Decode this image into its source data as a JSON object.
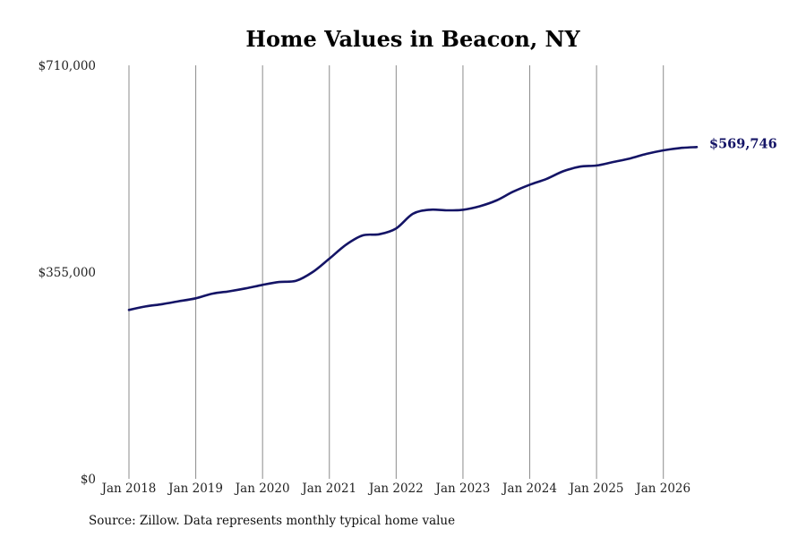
{
  "chart_data": {
    "type": "line",
    "title": "Home Values in Beacon, NY",
    "source": "Source: Zillow. Data represents monthly typical home value",
    "y_ticks": [
      "$0",
      "$355,000",
      "$710,000"
    ],
    "ylim": [
      0,
      710000
    ],
    "x_ticks": [
      "Jan 2018",
      "Jan 2019",
      "Jan 2020",
      "Jan 2021",
      "Jan 2022",
      "Jan 2023",
      "Jan 2024",
      "Jan 2025",
      "Jan 2026"
    ],
    "x_tick_years": [
      2018,
      2019,
      2020,
      2021,
      2022,
      2023,
      2024,
      2025,
      2026
    ],
    "xlim": [
      2018,
      2026.5
    ],
    "grid": "vertical",
    "series": [
      {
        "color": "#141466",
        "points": [
          [
            2018.0,
            290000
          ],
          [
            2018.25,
            296000
          ],
          [
            2018.5,
            300000
          ],
          [
            2018.75,
            305000
          ],
          [
            2019.0,
            310000
          ],
          [
            2019.25,
            318000
          ],
          [
            2019.5,
            322000
          ],
          [
            2019.75,
            327000
          ],
          [
            2020.0,
            333000
          ],
          [
            2020.25,
            338000
          ],
          [
            2020.5,
            340000
          ],
          [
            2020.75,
            355000
          ],
          [
            2021.0,
            378000
          ],
          [
            2021.25,
            402000
          ],
          [
            2021.5,
            418000
          ],
          [
            2021.75,
            420000
          ],
          [
            2022.0,
            430000
          ],
          [
            2022.25,
            455000
          ],
          [
            2022.5,
            462000
          ],
          [
            2022.75,
            461000
          ],
          [
            2023.0,
            462000
          ],
          [
            2023.25,
            468000
          ],
          [
            2023.5,
            478000
          ],
          [
            2023.75,
            493000
          ],
          [
            2024.0,
            505000
          ],
          [
            2024.25,
            515000
          ],
          [
            2024.5,
            528000
          ],
          [
            2024.75,
            536000
          ],
          [
            2025.0,
            538000
          ],
          [
            2025.25,
            544000
          ],
          [
            2025.5,
            550000
          ],
          [
            2025.75,
            558000
          ],
          [
            2026.0,
            564000
          ],
          [
            2026.25,
            568000
          ],
          [
            2026.5,
            569746
          ]
        ],
        "end_label": "$569,746"
      }
    ]
  }
}
